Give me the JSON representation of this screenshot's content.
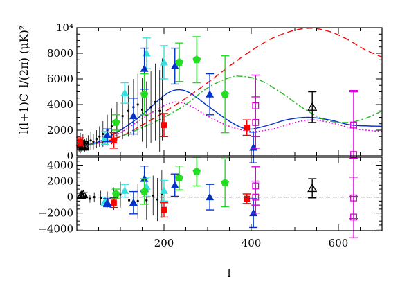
{
  "chart_data": {
    "type": "scatter",
    "x_axis": {
      "label": "l",
      "range": [
        0,
        700
      ],
      "ticks": [
        200,
        400,
        600
      ],
      "tick_labels": [
        "200",
        "400",
        "600"
      ]
    },
    "top_panel": {
      "ylabel": "l(l+1)C_l/(2π)  (μK)²",
      "y_range": [
        0,
        10000
      ],
      "y_ticks": [
        0,
        2000,
        4000,
        6000,
        8000,
        10000
      ],
      "y_tick_labels": [
        "0",
        "2000",
        "4000",
        "6000",
        "8000",
        "10⁴"
      ],
      "curves": [
        {
          "color": "#ff0000",
          "style": "dashed",
          "points": [
            [
              0,
              700
            ],
            [
              50,
              1000
            ],
            [
              100,
              1500
            ],
            [
              150,
              2400
            ],
            [
              200,
              3400
            ],
            [
              250,
              4500
            ],
            [
              300,
              5700
            ],
            [
              350,
              7000
            ],
            [
              400,
              8200
            ],
            [
              450,
              9200
            ],
            [
              500,
              9800
            ],
            [
              540,
              9950
            ],
            [
              580,
              9700
            ],
            [
              620,
              9100
            ],
            [
              660,
              8300
            ],
            [
              700,
              7700
            ]
          ]
        },
        {
          "color": "#0033cc",
          "style": "solid",
          "points": [
            [
              0,
              700
            ],
            [
              50,
              1100
            ],
            [
              100,
              2000
            ],
            [
              150,
              3200
            ],
            [
              200,
              4700
            ],
            [
              230,
              5150
            ],
            [
              260,
              4900
            ],
            [
              300,
              3900
            ],
            [
              350,
              2700
            ],
            [
              390,
              2100
            ],
            [
              430,
              2300
            ],
            [
              480,
              2800
            ],
            [
              530,
              3000
            ],
            [
              580,
              2800
            ],
            [
              630,
              2400
            ],
            [
              700,
              2300
            ]
          ]
        },
        {
          "color": "#22bb22",
          "style": "dashdot",
          "points": [
            [
              0,
              700
            ],
            [
              50,
              1000
            ],
            [
              100,
              1500
            ],
            [
              150,
              2200
            ],
            [
              200,
              3000
            ],
            [
              250,
              4000
            ],
            [
              300,
              5300
            ],
            [
              350,
              6100
            ],
            [
              380,
              6200
            ],
            [
              420,
              5900
            ],
            [
              470,
              4900
            ],
            [
              520,
              3700
            ],
            [
              570,
              2800
            ],
            [
              620,
              2600
            ],
            [
              660,
              2900
            ],
            [
              700,
              3500
            ]
          ]
        },
        {
          "color": "#dd00dd",
          "style": "dotted",
          "points": [
            [
              0,
              700
            ],
            [
              50,
              1000
            ],
            [
              100,
              1800
            ],
            [
              150,
              2900
            ],
            [
              200,
              3900
            ],
            [
              230,
              4200
            ],
            [
              260,
              3900
            ],
            [
              300,
              3100
            ],
            [
              350,
              2300
            ],
            [
              400,
              1900
            ],
            [
              450,
              2100
            ],
            [
              500,
              2600
            ],
            [
              540,
              2800
            ],
            [
              580,
              2600
            ],
            [
              640,
              2100
            ],
            [
              700,
              1900
            ]
          ]
        }
      ],
      "series": [
        {
          "marker": "dot-black",
          "points": [
            [
              5,
              800,
              500
            ],
            [
              8,
              1000,
              800
            ],
            [
              11,
              700,
              400
            ],
            [
              14,
              1100,
              600
            ],
            [
              18,
              800,
              500
            ],
            [
              22,
              900,
              500
            ],
            [
              26,
              1000,
              600
            ],
            [
              32,
              1200,
              700
            ],
            [
              38,
              1100,
              600
            ],
            [
              45,
              1300,
              700
            ],
            [
              52,
              1500,
              800
            ],
            [
              60,
              1700,
              1000
            ],
            [
              70,
              2000,
              1200
            ],
            [
              80,
              2300,
              1400
            ],
            [
              92,
              2700,
              1500
            ],
            [
              105,
              3100,
              1800
            ],
            [
              118,
              3500,
              2000
            ],
            [
              130,
              3800,
              2200
            ],
            [
              140,
              4000,
              2400
            ],
            [
              150,
              3600,
              2500
            ],
            [
              160,
              3200,
              2600
            ],
            [
              170,
              3800,
              2800
            ],
            [
              180,
              4200,
              3000
            ],
            [
              190,
              3500,
              3200
            ],
            [
              196,
              4400,
              3200
            ]
          ]
        },
        {
          "marker": "open-triangle-black",
          "points": [
            [
              10,
              900,
              300
            ],
            [
              14,
              700,
              250
            ],
            [
              18,
              800,
              300
            ],
            [
              540,
              3800,
              1200
            ]
          ]
        },
        {
          "marker": "square-red",
          "points": [
            [
              8,
              1100,
              300
            ],
            [
              85,
              1200,
              600
            ],
            [
              200,
              2400,
              900
            ],
            [
              390,
              2200,
              600
            ]
          ]
        },
        {
          "marker": "triangle-cyan",
          "points": [
            [
              65,
              1400,
              500
            ],
            [
              110,
              4900,
              800
            ],
            [
              160,
              8000,
              1200
            ],
            [
              200,
              7300,
              1300
            ]
          ]
        },
        {
          "marker": "triangle-blue",
          "points": [
            [
              70,
              1600,
              500
            ],
            [
              130,
              3100,
              1400
            ],
            [
              155,
              6800,
              1600
            ],
            [
              225,
              7000,
              1400
            ],
            [
              305,
              4800,
              1600
            ],
            [
              405,
              650,
              1200
            ]
          ]
        },
        {
          "marker": "pentagon-green",
          "points": [
            [
              90,
              2600,
              600
            ],
            [
              155,
              4800,
              1600
            ],
            [
              235,
              7300,
              1500
            ],
            [
              275,
              7500,
              1800
            ],
            [
              340,
              4800,
              3000
            ]
          ]
        },
        {
          "marker": "open-square-magenta",
          "points": [
            [
              410,
              3900,
              2400
            ],
            [
              410,
              2600,
              2000
            ],
            [
              635,
              100,
              5000
            ],
            [
              635,
              2400,
              2600
            ]
          ]
        }
      ]
    },
    "bottom_panel": {
      "y_range": [
        -4200,
        5000
      ],
      "y_ticks": [
        -4000,
        -2000,
        0,
        2000,
        4000
      ],
      "y_tick_labels": [
        "−4000",
        "−2000",
        "0",
        "2000",
        "4000"
      ],
      "zero_line": "dashed",
      "series": [
        {
          "marker": "dot-black",
          "points": [
            [
              8,
              200,
              300
            ],
            [
              12,
              300,
              400
            ],
            [
              20,
              100,
              300
            ],
            [
              30,
              -200,
              500
            ],
            [
              40,
              0,
              600
            ],
            [
              55,
              -100,
              900
            ],
            [
              70,
              -300,
              1000
            ],
            [
              85,
              -200,
              1400
            ],
            [
              100,
              300,
              1600
            ],
            [
              120,
              -400,
              2000
            ],
            [
              140,
              -500,
              2200
            ],
            [
              160,
              -400,
              2400
            ],
            [
              175,
              200,
              2500
            ],
            [
              185,
              -300,
              2700
            ],
            [
              195,
              400,
              3000
            ]
          ]
        },
        {
          "marker": "open-triangle-black",
          "points": [
            [
              10,
              200,
              300
            ],
            [
              15,
              300,
              250
            ],
            [
              540,
              1100,
              1200
            ]
          ]
        },
        {
          "marker": "square-red",
          "points": [
            [
              85,
              -700,
              600
            ],
            [
              200,
              -1600,
              900
            ],
            [
              390,
              -200,
              600
            ]
          ]
        },
        {
          "marker": "triangle-cyan",
          "points": [
            [
              65,
              -500,
              500
            ],
            [
              110,
              800,
              800
            ],
            [
              160,
              1300,
              1200
            ],
            [
              200,
              800,
              1300
            ]
          ]
        },
        {
          "marker": "triangle-blue",
          "points": [
            [
              70,
              -700,
              500
            ],
            [
              130,
              -700,
              1400
            ],
            [
              155,
              2300,
              1600
            ],
            [
              225,
              1500,
              1400
            ],
            [
              305,
              0,
              1600
            ],
            [
              405,
              -2000,
              1800
            ]
          ]
        },
        {
          "marker": "pentagon-green",
          "points": [
            [
              90,
              400,
              600
            ],
            [
              155,
              700,
              1600
            ],
            [
              235,
              2400,
              1500
            ],
            [
              275,
              3200,
              1800
            ],
            [
              340,
              1800,
              3000
            ]
          ]
        },
        {
          "marker": "open-square-magenta",
          "points": [
            [
              410,
              1400,
              2400
            ],
            [
              410,
              0,
              2000
            ],
            [
              635,
              -2500,
              2600
            ],
            [
              635,
              -100,
              2600
            ]
          ]
        }
      ]
    }
  }
}
